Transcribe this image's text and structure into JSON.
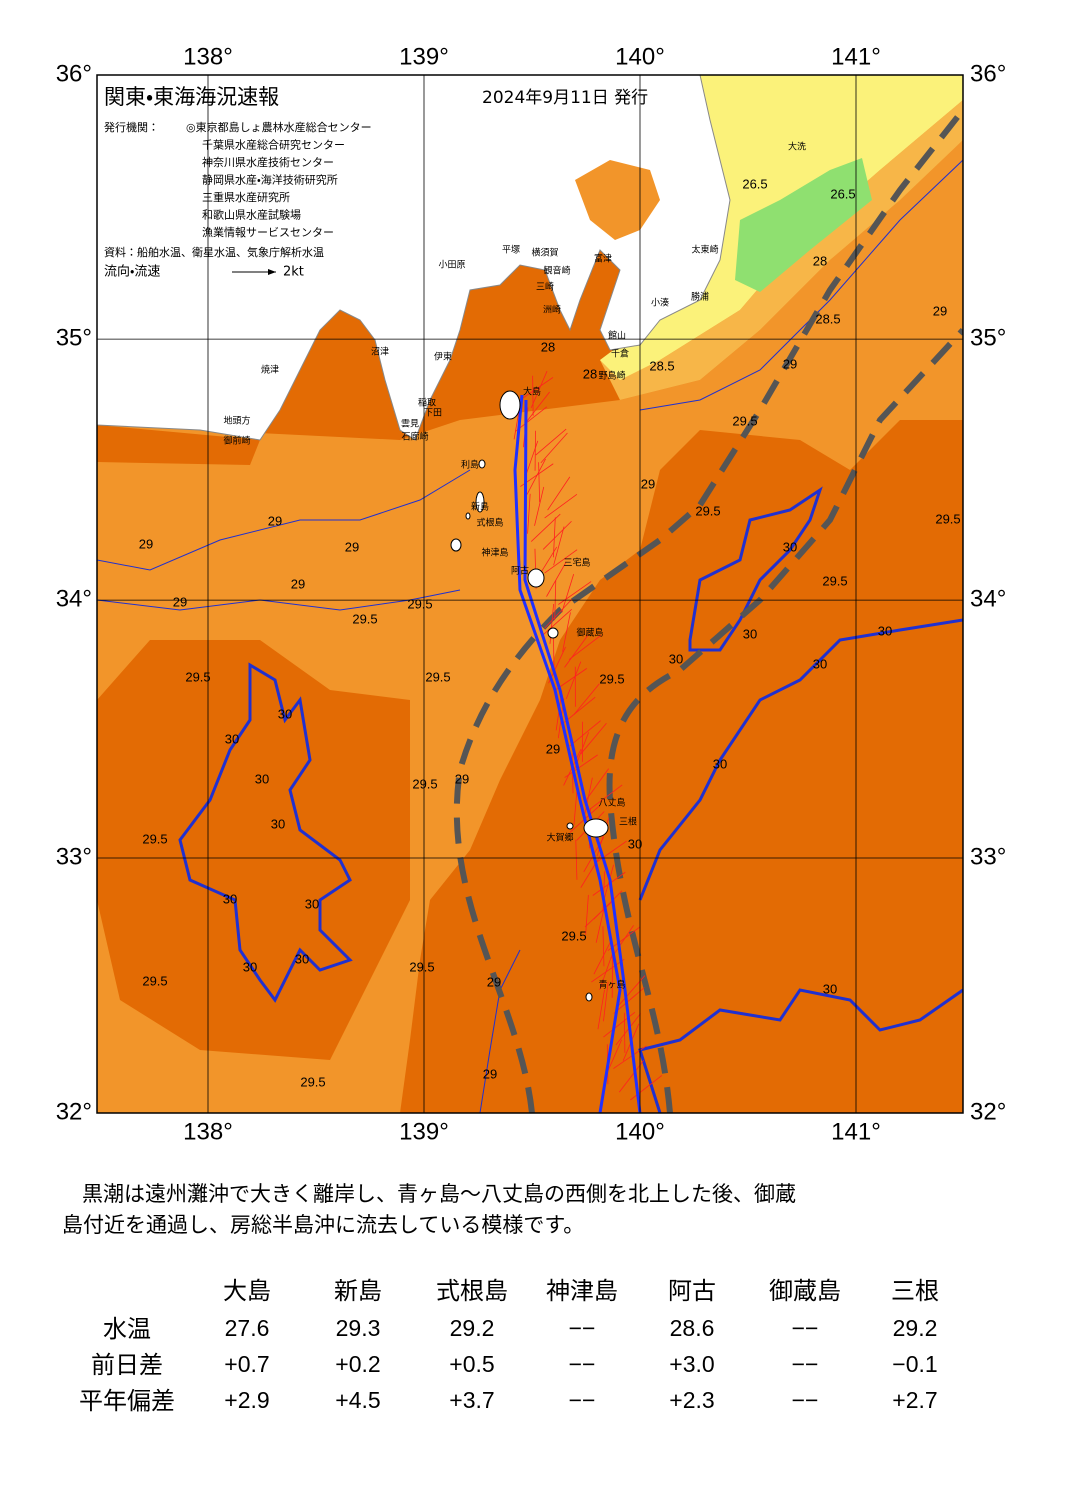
{
  "map": {
    "title": "関東・東海海況速報",
    "date": "2024年9月11日 発行",
    "issuer_label": "発行機関：",
    "issuers": [
      "◎東京都島しょ農林水産総合センター",
      "千葉県水産総合研究センター",
      "神奈川県水産技術センター",
      "静岡県水産・海洋技術研究所",
      "三重県水産研究所",
      "和歌山県水産試験場",
      "漁業情報サービスセンター"
    ],
    "source": "資料：船舶水温、衛星水温、気象庁解析水温",
    "legend_label": "流向・流速",
    "legend_scale": "2kt",
    "lon_ticks": [
      {
        "value": 138,
        "label": "138°"
      },
      {
        "value": 139,
        "label": "139°"
      },
      {
        "value": 140,
        "label": "140°"
      },
      {
        "value": 141,
        "label": "141°"
      }
    ],
    "lat_ticks": [
      {
        "value": 36,
        "label": "36°"
      },
      {
        "value": 35,
        "label": "35°"
      },
      {
        "value": 34,
        "label": "34°"
      },
      {
        "value": 33,
        "label": "33°"
      },
      {
        "value": 32,
        "label": "32°"
      }
    ],
    "contour_labels": [
      "28",
      "28",
      "28.5",
      "29",
      "29.5",
      "29.5",
      "29",
      "28.5",
      "28",
      "26.5",
      "26.5",
      "29",
      "29.5",
      "30",
      "29.5",
      "30",
      "30",
      "30",
      "30",
      "30",
      "29.5",
      "29.5",
      "29.5",
      "29.5",
      "29.5",
      "29",
      "29",
      "29",
      "29",
      "29",
      "29.5",
      "29",
      "29",
      "30",
      "30",
      "30",
      "30",
      "30",
      "30",
      "30",
      "30",
      "29.5",
      "29.5",
      "29.5",
      "29",
      "29.5",
      "29.5",
      "29",
      "30",
      "30"
    ],
    "place_names": [
      "大洗",
      "太東崎",
      "勝浦",
      "小湊",
      "館山",
      "千倉",
      "野島崎",
      "富津",
      "横須賀",
      "平塚",
      "小田原",
      "観音崎",
      "三崎",
      "洲崎",
      "焼津",
      "沼津",
      "伊東",
      "地頭方",
      "御前崎",
      "稲取",
      "下田",
      "雲見",
      "石廊崎",
      "大島",
      "利島",
      "新島",
      "式根島",
      "神津島",
      "三宅島",
      "阿古",
      "御蔵島",
      "八丈島",
      "三根",
      "大賀郷",
      "青ヶ島"
    ]
  },
  "description": [
    "黒潮は遠州灘沖で大きく離岸し、青ヶ島～八丈島の西側を北上した後、御蔵",
    "島付近を通過し、房総半島沖に流去している模様です。"
  ],
  "table": {
    "columns": [
      "大島",
      "新島",
      "式根島",
      "神津島",
      "阿古",
      "御蔵島",
      "三根"
    ],
    "rows": [
      {
        "label": "水温",
        "values": [
          "27.6",
          "29.3",
          "29.2",
          "−−",
          "28.6",
          "−−",
          "29.2"
        ]
      },
      {
        "label": "前日差",
        "values": [
          "+0.7",
          "+0.2",
          "+0.5",
          "−−",
          "+3.0",
          "−−",
          "−0.1"
        ]
      },
      {
        "label": "平年偏差",
        "values": [
          "+2.9",
          "+4.5",
          "+3.7",
          "−−",
          "+2.3",
          "−−",
          "+2.7"
        ]
      }
    ]
  }
}
